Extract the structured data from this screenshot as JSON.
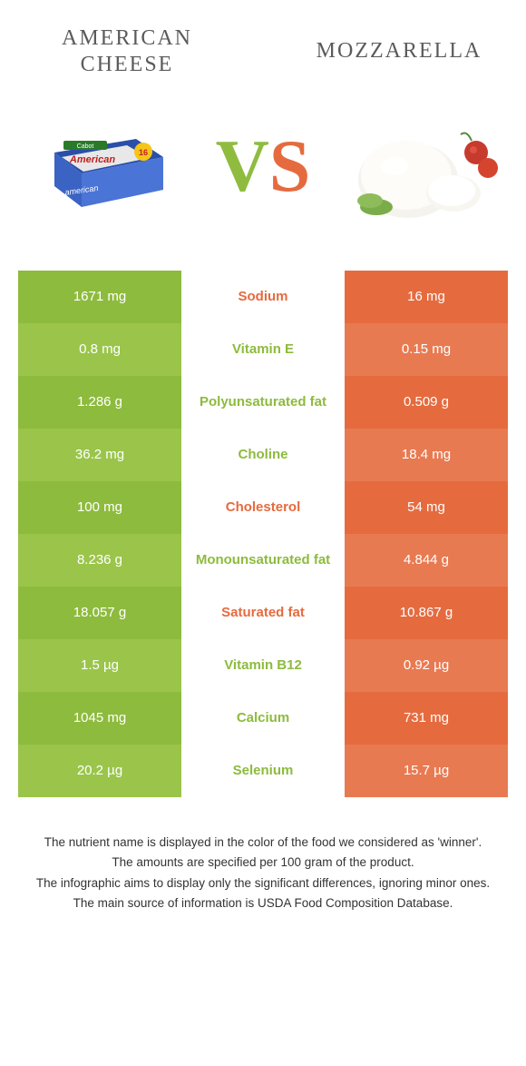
{
  "header": {
    "left_title": "American\ncheese",
    "right_title": "Mozzarella",
    "vs_v": "V",
    "vs_s": "S"
  },
  "colors": {
    "left_main": "#8dbb3d",
    "left_alt": "#9ac54a",
    "right_main": "#e56b3f",
    "right_alt": "#e87a52",
    "mid_left_text": "#8dbb3d",
    "mid_right_text": "#e56b3f"
  },
  "rows": [
    {
      "label": "Sodium",
      "left": "1671 mg",
      "right": "16 mg",
      "winner": "right"
    },
    {
      "label": "Vitamin E",
      "left": "0.8 mg",
      "right": "0.15 mg",
      "winner": "left"
    },
    {
      "label": "Polyunsaturated fat",
      "left": "1.286 g",
      "right": "0.509 g",
      "winner": "left"
    },
    {
      "label": "Choline",
      "left": "36.2 mg",
      "right": "18.4 mg",
      "winner": "left"
    },
    {
      "label": "Cholesterol",
      "left": "100 mg",
      "right": "54 mg",
      "winner": "right"
    },
    {
      "label": "Monounsaturated fat",
      "left": "8.236 g",
      "right": "4.844 g",
      "winner": "left"
    },
    {
      "label": "Saturated fat",
      "left": "18.057 g",
      "right": "10.867 g",
      "winner": "right"
    },
    {
      "label": "Vitamin B12",
      "left": "1.5 µg",
      "right": "0.92 µg",
      "winner": "left"
    },
    {
      "label": "Calcium",
      "left": "1045 mg",
      "right": "731 mg",
      "winner": "left"
    },
    {
      "label": "Selenium",
      "left": "20.2 µg",
      "right": "15.7 µg",
      "winner": "left"
    }
  ],
  "footer": {
    "l1": "The nutrient name is displayed in the color of the food we considered as 'winner'.",
    "l2": "The amounts are specified per 100 gram of the product.",
    "l3": "The infographic aims to display only the significant differences, ignoring minor ones.",
    "l4": "The main source of information is USDA Food Composition Database."
  }
}
